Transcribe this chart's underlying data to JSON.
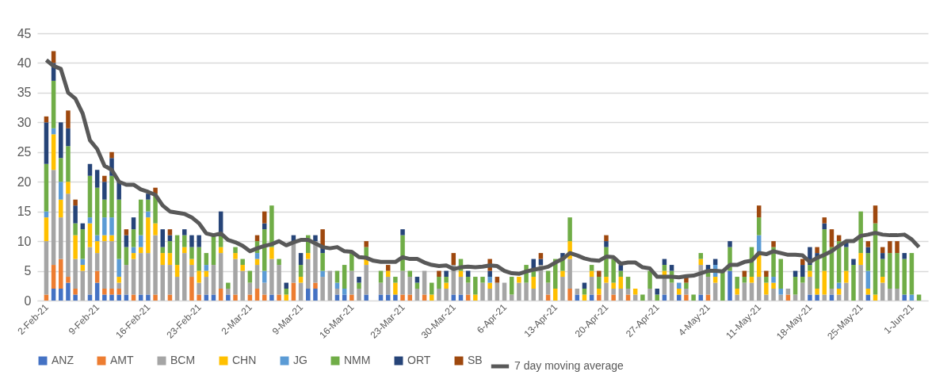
{
  "chart_data": {
    "type": "bar",
    "stacked": true,
    "ylim": [
      0,
      45
    ],
    "yticks": [
      0,
      5,
      10,
      15,
      20,
      25,
      30,
      35,
      40,
      45
    ],
    "grid": "y",
    "legend": "bottom",
    "categories": [
      "2-Feb-21",
      null,
      null,
      null,
      null,
      null,
      null,
      "9-Feb-21",
      null,
      null,
      null,
      null,
      null,
      null,
      "16-Feb-21",
      null,
      null,
      null,
      null,
      null,
      null,
      "23-Feb-21",
      null,
      null,
      null,
      null,
      null,
      null,
      "2-Mar-21",
      null,
      null,
      null,
      null,
      null,
      null,
      "9-Mar-21",
      null,
      null,
      null,
      null,
      null,
      null,
      "16-Mar-21",
      null,
      null,
      null,
      null,
      null,
      null,
      "23-Mar-21",
      null,
      null,
      null,
      null,
      null,
      null,
      "30-Mar-21",
      null,
      null,
      null,
      null,
      null,
      null,
      "6-Apr-21",
      null,
      null,
      null,
      null,
      null,
      null,
      "13-Apr-21",
      null,
      null,
      null,
      null,
      null,
      null,
      "20-Apr-21",
      null,
      null,
      null,
      null,
      null,
      null,
      "27-Apr-21",
      null,
      null,
      null,
      null,
      null,
      null,
      "4-May-21",
      null,
      null,
      null,
      null,
      null,
      null,
      "11-May-21",
      null,
      null,
      null,
      null,
      null,
      null,
      "18-May-21",
      null,
      null,
      null,
      null,
      null,
      null,
      "25-May-21",
      null,
      null,
      null,
      null,
      null,
      null,
      "1-Jun-21",
      null
    ],
    "series": [
      {
        "name": "ANZ",
        "color": "#4472c4",
        "values": [
          0,
          2,
          2,
          3,
          1,
          0,
          1,
          3,
          1,
          1,
          1,
          1,
          0,
          1,
          1,
          0,
          0,
          0,
          0,
          0,
          0,
          0,
          1,
          1,
          0,
          1,
          0,
          0,
          0,
          0,
          0,
          1,
          0,
          0,
          0,
          0,
          2,
          2,
          0,
          0,
          1,
          1,
          0,
          0,
          1,
          0,
          1,
          1,
          1,
          0,
          0,
          0,
          0,
          0,
          0,
          0,
          1,
          1,
          0,
          0,
          0,
          0,
          0,
          0,
          0,
          0,
          0,
          0,
          0,
          0,
          0,
          0,
          0,
          1,
          0,
          1,
          0,
          0,
          0,
          0,
          0,
          0,
          0,
          0,
          0,
          1,
          0,
          1,
          0,
          0,
          1,
          0,
          0,
          0,
          5,
          0,
          0,
          0,
          0,
          0,
          0,
          0,
          0,
          0,
          0,
          1,
          1,
          0,
          1,
          0,
          0,
          0,
          0,
          1,
          0,
          0,
          0,
          0,
          1,
          0,
          0
        ]
      },
      {
        "name": "AMT",
        "color": "#ed7d31",
        "values": [
          1,
          4,
          5,
          1,
          1,
          0,
          0,
          2,
          1,
          1,
          1,
          0,
          1,
          0,
          0,
          1,
          0,
          1,
          0,
          0,
          4,
          1,
          0,
          0,
          2,
          0,
          1,
          0,
          1,
          2,
          1,
          0,
          1,
          0,
          3,
          0,
          0,
          1,
          0,
          0,
          0,
          0,
          1,
          0,
          0,
          0,
          0,
          0,
          0,
          1,
          1,
          0,
          1,
          0,
          0,
          0,
          0,
          0,
          1,
          0,
          0,
          0,
          0,
          0,
          0,
          0,
          0,
          0,
          0,
          1,
          0,
          0,
          2,
          0,
          0,
          0,
          1,
          0,
          1,
          0,
          1,
          0,
          0,
          0,
          0,
          0,
          0,
          0,
          1,
          0,
          0,
          1,
          0,
          0,
          0,
          0,
          0,
          0,
          0,
          0,
          0,
          0,
          1,
          0,
          0,
          0,
          0,
          0,
          0,
          0,
          0,
          0,
          0,
          0,
          0,
          0,
          0,
          0,
          0,
          0,
          0
        ]
      },
      {
        "name": "BCM",
        "color": "#a5a5a5",
        "values": [
          9,
          16,
          7,
          14,
          5,
          5,
          8,
          3,
          8,
          8,
          1,
          5,
          6,
          7,
          7,
          10,
          6,
          5,
          4,
          8,
          2,
          2,
          3,
          5,
          6,
          1,
          6,
          5,
          2,
          4,
          2,
          6,
          5,
          0,
          7,
          3,
          5,
          7,
          4,
          5,
          1,
          0,
          4,
          2,
          5,
          0,
          2,
          3,
          0,
          4,
          3,
          2,
          4,
          0,
          2,
          2,
          5,
          3,
          2,
          0,
          3,
          2,
          3,
          3,
          1,
          3,
          3,
          2,
          6,
          2,
          0,
          4,
          5,
          1,
          0,
          3,
          0,
          3,
          1,
          2,
          1,
          1,
          0,
          2,
          0,
          3,
          3,
          0,
          1,
          0,
          5,
          3,
          3,
          0,
          0,
          1,
          3,
          3,
          4,
          1,
          2,
          1,
          1,
          1,
          3,
          3,
          0,
          1,
          1,
          1,
          3,
          0,
          6,
          0,
          0,
          3,
          2,
          2,
          0,
          0,
          0
        ]
      },
      {
        "name": "CHN",
        "color": "#ffc000",
        "values": [
          4,
          6,
          3,
          2,
          4,
          1,
          4,
          2,
          1,
          1,
          1,
          0,
          1,
          1,
          6,
          2,
          2,
          2,
          2,
          1,
          1,
          2,
          1,
          0,
          1,
          0,
          1,
          1,
          0,
          1,
          0,
          2,
          0,
          1,
          0,
          1,
          1,
          0,
          0,
          0,
          0,
          0,
          0,
          0,
          1,
          0,
          0,
          1,
          2,
          0,
          0,
          0,
          0,
          1,
          0,
          1,
          0,
          1,
          0,
          1,
          0,
          1,
          0,
          0,
          0,
          1,
          0,
          2,
          0,
          0,
          2,
          1,
          3,
          0,
          1,
          1,
          1,
          1,
          1,
          2,
          0,
          1,
          0,
          0,
          0,
          1,
          0,
          1,
          0,
          0,
          1,
          0,
          1,
          0,
          0,
          1,
          0,
          1,
          4,
          2,
          1,
          0,
          0,
          0,
          0,
          1,
          1,
          4,
          0,
          1,
          2,
          0,
          2,
          1,
          1,
          1,
          0,
          0,
          0,
          0,
          0
        ]
      },
      {
        "name": "JG",
        "color": "#5b9bd5",
        "values": [
          1,
          1,
          3,
          0,
          0,
          1,
          1,
          1,
          3,
          3,
          3,
          0,
          1,
          2,
          1,
          0,
          0,
          0,
          0,
          0,
          0,
          0,
          1,
          0,
          0,
          0,
          0,
          0,
          0,
          1,
          2,
          0,
          0,
          0,
          0,
          0,
          0,
          0,
          1,
          0,
          1,
          1,
          0,
          0,
          0,
          0,
          0,
          0,
          0,
          0,
          0,
          0,
          0,
          0,
          0,
          0,
          0,
          0,
          0,
          0,
          0,
          1,
          0,
          0,
          0,
          0,
          0,
          0,
          0,
          0,
          0,
          0,
          0,
          0,
          0,
          0,
          0,
          0,
          0,
          0,
          0,
          0,
          0,
          0,
          0,
          0,
          0,
          1,
          0,
          0,
          0,
          0,
          2,
          0,
          0,
          0,
          0,
          0,
          3,
          0,
          1,
          1,
          0,
          0,
          0,
          0,
          0,
          0,
          0,
          1,
          0,
          0,
          0,
          3,
          0,
          0,
          0,
          0,
          0,
          1,
          0
        ]
      },
      {
        "name": "NMM",
        "color": "#70ad47",
        "values": [
          8,
          8,
          4,
          6,
          2,
          5,
          7,
          8,
          3,
          7,
          10,
          3,
          3,
          6,
          2,
          5,
          1,
          2,
          5,
          2,
          2,
          4,
          2,
          5,
          2,
          1,
          1,
          1,
          2,
          2,
          7,
          7,
          1,
          1,
          0,
          2,
          3,
          0,
          3,
          0,
          2,
          4,
          3,
          1,
          2,
          0,
          2,
          0,
          1,
          6,
          1,
          1,
          0,
          2,
          2,
          1,
          0,
          2,
          1,
          3,
          1,
          0,
          0,
          0,
          3,
          0,
          3,
          1,
          0,
          2,
          5,
          2,
          4,
          0,
          1,
          1,
          2,
          5,
          4,
          1,
          2,
          0,
          1,
          3,
          1,
          1,
          2,
          0,
          1,
          1,
          1,
          1,
          0,
          5,
          4,
          2,
          1,
          5,
          3,
          1,
          5,
          5,
          0,
          3,
          1,
          1,
          5,
          7,
          7,
          7,
          4,
          6,
          7,
          3,
          12,
          3,
          6,
          6,
          6,
          7,
          1
        ]
      },
      {
        "name": "ORT",
        "color": "#264478",
        "values": [
          7,
          3,
          6,
          3,
          3,
          1,
          2,
          3,
          3,
          3,
          3,
          2,
          2,
          0,
          1,
          0,
          3,
          1,
          0,
          1,
          2,
          2,
          0,
          0,
          4,
          0,
          0,
          0,
          0,
          0,
          1,
          0,
          0,
          1,
          1,
          2,
          0,
          1,
          1,
          0,
          0,
          0,
          0,
          1,
          0,
          0,
          0,
          0,
          0,
          1,
          0,
          1,
          0,
          0,
          0,
          1,
          0,
          0,
          1,
          0,
          0,
          1,
          0,
          0,
          0,
          0,
          0,
          2,
          1,
          0,
          0,
          1,
          0,
          0,
          1,
          0,
          0,
          1,
          0,
          1,
          0,
          0,
          0,
          0,
          1,
          1,
          1,
          0,
          0,
          0,
          0,
          1,
          1,
          0,
          1,
          0,
          0,
          0,
          0,
          0,
          0,
          0,
          0,
          1,
          2,
          3,
          1,
          1,
          0,
          0,
          1,
          1,
          0,
          1,
          0,
          1,
          0,
          0,
          1,
          0,
          0
        ]
      },
      {
        "name": "SB",
        "color": "#9e480e",
        "values": [
          1,
          2,
          0,
          3,
          1,
          0,
          0,
          0,
          1,
          1,
          0,
          1,
          0,
          0,
          0,
          1,
          0,
          1,
          0,
          0,
          0,
          0,
          0,
          0,
          0,
          0,
          0,
          0,
          0,
          1,
          2,
          0,
          0,
          0,
          0,
          0,
          0,
          0,
          3,
          0,
          0,
          0,
          0,
          0,
          1,
          0,
          0,
          1,
          0,
          0,
          0,
          0,
          0,
          0,
          1,
          0,
          2,
          0,
          0,
          0,
          0,
          2,
          1,
          0,
          0,
          0,
          0,
          0,
          1,
          0,
          0,
          0,
          0,
          0,
          0,
          0,
          1,
          1,
          0,
          0,
          0,
          0,
          0,
          0,
          0,
          0,
          0,
          0,
          1,
          0,
          0,
          0,
          0,
          0,
          0,
          0,
          1,
          0,
          2,
          1,
          1,
          0,
          0,
          0,
          1,
          0,
          1,
          1,
          3,
          1,
          0,
          0,
          0,
          1,
          3,
          1,
          2,
          2,
          0,
          0,
          0
        ]
      },
      {
        "name": "7 day moving average",
        "type": "line",
        "color": "#595959",
        "values": [
          40.5,
          39.5,
          39,
          35,
          34,
          31.5,
          27,
          25.5,
          22.7,
          22,
          20,
          19.5,
          19.5,
          18.7,
          18.3,
          17.8,
          16,
          15,
          14.8,
          14.6,
          14,
          13,
          11.3,
          11,
          11.3,
          10.2,
          9.8,
          9.2,
          8.3,
          8.8,
          9.2,
          9.5,
          10,
          9.3,
          9.8,
          10.2,
          10.2,
          9.6,
          9,
          8.8,
          9,
          8.3,
          8.2,
          7.3,
          7.2,
          6.7,
          6.5,
          6.5,
          6.5,
          7.3,
          7,
          7,
          6.4,
          6,
          5.8,
          5.9,
          5.3,
          5.6,
          5.7,
          5.6,
          5.7,
          5.9,
          5.8,
          5,
          4.6,
          4.5,
          4.9,
          5.2,
          5.4,
          5.7,
          6.4,
          7,
          8,
          7.6,
          7.1,
          6.8,
          6.7,
          7.4,
          7.3,
          6.2,
          6.4,
          6.4,
          5.6,
          5.4,
          4,
          4,
          4,
          3.9,
          4.1,
          4.2,
          4.6,
          5,
          5,
          4.9,
          6,
          6,
          6.5,
          6.7,
          8,
          7.8,
          8.3,
          8,
          7.7,
          7.7,
          7.6,
          6.5,
          7.2,
          7.7,
          8.3,
          9.2,
          10,
          10,
          10.9,
          11.1,
          11.4,
          11.1,
          11,
          11,
          11.1,
          10.3,
          9
        ]
      }
    ]
  }
}
